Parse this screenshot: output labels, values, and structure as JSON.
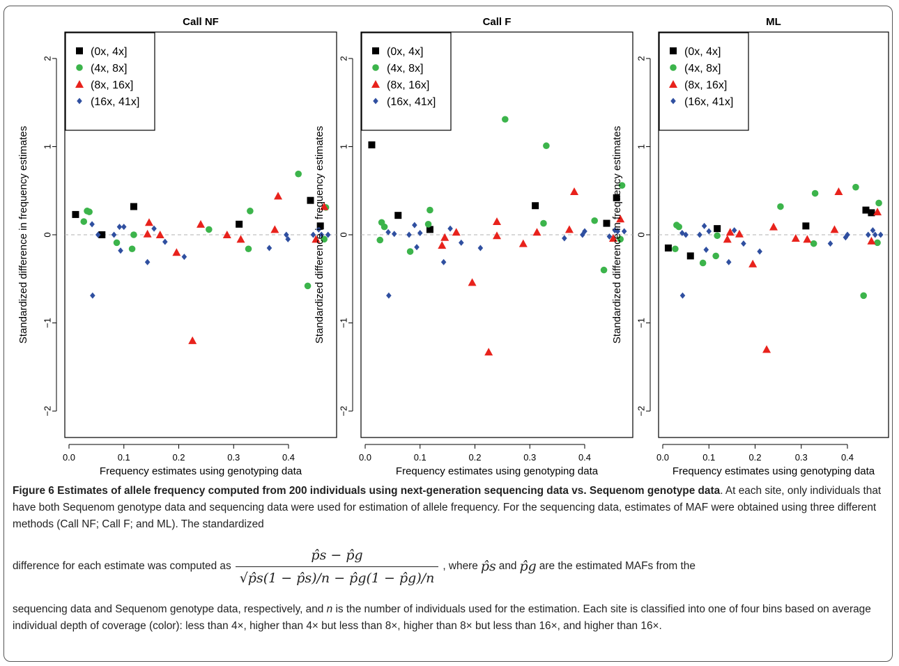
{
  "x_axis_label": "Frequency estimates using genotyping data",
  "y_axis_label": "Standardized difference in frequency estimates",
  "legend": [
    {
      "label": "(0x, 4x]",
      "color": "#000000",
      "marker": "square"
    },
    {
      "label": "(4x, 8x]",
      "color": "#3cb44b",
      "marker": "circle"
    },
    {
      "label": "(8x, 16x]",
      "color": "#e8221c",
      "marker": "triangle"
    },
    {
      "label": "(16x, 41x]",
      "color": "#2f4fa0",
      "marker": "diamond"
    }
  ],
  "chart_data": [
    {
      "type": "scatter",
      "title": "Call NF",
      "xlabel": "Frequency estimates using genotyping data",
      "ylabel": "Standardized difference in frequency estimates",
      "xlim": [
        0,
        0.48
      ],
      "ylim": [
        -2.3,
        2.3
      ],
      "xticks": [
        "0.0",
        "0.1",
        "0.2",
        "0.3",
        "0.4"
      ],
      "yticks": [
        "−2",
        "−1",
        "0",
        "1",
        "2"
      ],
      "reference_line": 0,
      "series": [
        {
          "name": "(0x, 4x]",
          "points": [
            [
              0.012,
              0.23
            ],
            [
              0.06,
              0.0
            ],
            [
              0.118,
              0.32
            ],
            [
              0.31,
              0.12
            ],
            [
              0.44,
              0.39
            ],
            [
              0.458,
              0.1
            ]
          ]
        },
        {
          "name": "(4x, 8x]",
          "points": [
            [
              0.027,
              0.15
            ],
            [
              0.033,
              0.27
            ],
            [
              0.037,
              0.26
            ],
            [
              0.087,
              -0.09
            ],
            [
              0.115,
              -0.16
            ],
            [
              0.118,
              0.0
            ],
            [
              0.255,
              0.06
            ],
            [
              0.327,
              -0.16
            ],
            [
              0.33,
              0.27
            ],
            [
              0.418,
              0.69
            ],
            [
              0.435,
              -0.58
            ],
            [
              0.465,
              -0.05
            ],
            [
              0.468,
              0.31
            ]
          ]
        },
        {
          "name": "(8x, 16x]",
          "points": [
            [
              0.143,
              0.01
            ],
            [
              0.146,
              0.14
            ],
            [
              0.166,
              0.0
            ],
            [
              0.196,
              -0.2
            ],
            [
              0.225,
              -1.2
            ],
            [
              0.24,
              0.12
            ],
            [
              0.288,
              0.0
            ],
            [
              0.313,
              -0.05
            ],
            [
              0.375,
              0.06
            ],
            [
              0.381,
              0.44
            ],
            [
              0.45,
              -0.05
            ],
            [
              0.465,
              0.32
            ]
          ]
        },
        {
          "name": "(16x, 41x]",
          "points": [
            [
              0.042,
              0.12
            ],
            [
              0.043,
              -0.69
            ],
            [
              0.053,
              0.0
            ],
            [
              0.082,
              0.0
            ],
            [
              0.092,
              0.09
            ],
            [
              0.094,
              -0.18
            ],
            [
              0.1,
              0.09
            ],
            [
              0.143,
              -0.31
            ],
            [
              0.155,
              0.07
            ],
            [
              0.175,
              -0.08
            ],
            [
              0.21,
              -0.25
            ],
            [
              0.365,
              -0.15
            ],
            [
              0.396,
              0.0
            ],
            [
              0.399,
              -0.05
            ],
            [
              0.445,
              0.0
            ],
            [
              0.455,
              0.06
            ],
            [
              0.46,
              0.0
            ],
            [
              0.472,
              0.0
            ]
          ]
        }
      ]
    },
    {
      "type": "scatter",
      "title": "Call F",
      "xlabel": "Frequency estimates using genotyping data",
      "ylabel": "Standardized difference in frequency estimates",
      "xlim": [
        0,
        0.48
      ],
      "ylim": [
        -2.3,
        2.3
      ],
      "xticks": [
        "0.0",
        "0.1",
        "0.2",
        "0.3",
        "0.4"
      ],
      "yticks": [
        "−2",
        "−1",
        "0",
        "1",
        "2"
      ],
      "reference_line": 0,
      "series": [
        {
          "name": "(0x, 4x]",
          "points": [
            [
              0.012,
              1.02
            ],
            [
              0.06,
              0.22
            ],
            [
              0.118,
              0.06
            ],
            [
              0.31,
              0.33
            ],
            [
              0.44,
              0.13
            ],
            [
              0.458,
              0.42
            ]
          ]
        },
        {
          "name": "(4x, 8x]",
          "points": [
            [
              0.027,
              -0.06
            ],
            [
              0.03,
              0.14
            ],
            [
              0.035,
              0.09
            ],
            [
              0.082,
              -0.19
            ],
            [
              0.115,
              0.12
            ],
            [
              0.118,
              0.28
            ],
            [
              0.255,
              1.31
            ],
            [
              0.325,
              0.13
            ],
            [
              0.33,
              1.01
            ],
            [
              0.418,
              0.16
            ],
            [
              0.435,
              -0.4
            ],
            [
              0.465,
              -0.05
            ],
            [
              0.468,
              0.56
            ]
          ]
        },
        {
          "name": "(8x, 16x]",
          "points": [
            [
              0.14,
              -0.12
            ],
            [
              0.145,
              -0.03
            ],
            [
              0.166,
              0.03
            ],
            [
              0.195,
              -0.54
            ],
            [
              0.225,
              -1.33
            ],
            [
              0.24,
              0.15
            ],
            [
              0.24,
              -0.01
            ],
            [
              0.288,
              -0.1
            ],
            [
              0.313,
              0.03
            ],
            [
              0.372,
              0.06
            ],
            [
              0.381,
              0.49
            ],
            [
              0.452,
              -0.04
            ],
            [
              0.465,
              0.18
            ]
          ]
        },
        {
          "name": "(16x, 41x]",
          "points": [
            [
              0.042,
              0.03
            ],
            [
              0.043,
              -0.69
            ],
            [
              0.053,
              0.01
            ],
            [
              0.08,
              0.0
            ],
            [
              0.09,
              0.11
            ],
            [
              0.094,
              -0.14
            ],
            [
              0.1,
              0.02
            ],
            [
              0.143,
              -0.31
            ],
            [
              0.155,
              0.07
            ],
            [
              0.175,
              -0.09
            ],
            [
              0.21,
              -0.15
            ],
            [
              0.363,
              -0.04
            ],
            [
              0.396,
              0.0
            ],
            [
              0.4,
              0.04
            ],
            [
              0.445,
              -0.02
            ],
            [
              0.455,
              0.05
            ],
            [
              0.46,
              0.04
            ],
            [
              0.472,
              0.04
            ]
          ]
        }
      ]
    },
    {
      "type": "scatter",
      "title": "ML",
      "xlabel": "Frequency estimates using genotyping data",
      "ylabel": "Standardized difference in frequency estimates",
      "xlim": [
        0,
        0.48
      ],
      "ylim": [
        -2.3,
        2.3
      ],
      "xticks": [
        "0.0",
        "0.1",
        "0.2",
        "0.3",
        "0.4"
      ],
      "yticks": [
        "−2",
        "−1",
        "0",
        "1",
        "2"
      ],
      "reference_line": 0,
      "series": [
        {
          "name": "(0x, 4x]",
          "points": [
            [
              0.012,
              -0.15
            ],
            [
              0.06,
              -0.24
            ],
            [
              0.118,
              0.07
            ],
            [
              0.31,
              0.1
            ],
            [
              0.44,
              0.28
            ],
            [
              0.452,
              0.25
            ]
          ]
        },
        {
          "name": "(4x, 8x]",
          "points": [
            [
              0.027,
              -0.16
            ],
            [
              0.03,
              0.11
            ],
            [
              0.035,
              0.09
            ],
            [
              0.087,
              -0.32
            ],
            [
              0.115,
              -0.24
            ],
            [
              0.118,
              -0.01
            ],
            [
              0.255,
              0.32
            ],
            [
              0.327,
              -0.1
            ],
            [
              0.33,
              0.47
            ],
            [
              0.418,
              0.54
            ],
            [
              0.435,
              -0.69
            ],
            [
              0.465,
              -0.09
            ],
            [
              0.468,
              0.36
            ]
          ]
        },
        {
          "name": "(8x, 16x]",
          "points": [
            [
              0.14,
              -0.05
            ],
            [
              0.146,
              0.03
            ],
            [
              0.166,
              0.01
            ],
            [
              0.195,
              -0.33
            ],
            [
              0.225,
              -1.3
            ],
            [
              0.24,
              0.09
            ],
            [
              0.288,
              -0.04
            ],
            [
              0.313,
              -0.05
            ],
            [
              0.372,
              0.06
            ],
            [
              0.381,
              0.49
            ],
            [
              0.452,
              -0.07
            ],
            [
              0.465,
              0.26
            ]
          ]
        },
        {
          "name": "(16x, 41x]",
          "points": [
            [
              0.042,
              0.02
            ],
            [
              0.043,
              -0.69
            ],
            [
              0.05,
              0.0
            ],
            [
              0.08,
              0.0
            ],
            [
              0.09,
              0.1
            ],
            [
              0.094,
              -0.17
            ],
            [
              0.1,
              0.04
            ],
            [
              0.143,
              -0.31
            ],
            [
              0.155,
              0.05
            ],
            [
              0.175,
              -0.1
            ],
            [
              0.21,
              -0.19
            ],
            [
              0.363,
              -0.1
            ],
            [
              0.396,
              -0.03
            ],
            [
              0.4,
              0.0
            ],
            [
              0.445,
              0.0
            ],
            [
              0.455,
              0.05
            ],
            [
              0.46,
              0.0
            ],
            [
              0.472,
              0.0
            ]
          ]
        }
      ]
    }
  ],
  "caption": {
    "label": "Figure 6",
    "title": "Estimates of allele frequency computed from 200 individuals using next-generation sequencing data vs. Sequenom genotype data",
    "text1": ". At each site, only individuals that have both Sequenom genotype data and sequencing data were used for estimation of allele frequency. For the sequencing data, estimates of MAF were obtained using three different methods (Call NF; Call F; and ML). The standardized",
    "formula_prefix": "difference for each estimate was computed as",
    "formula_numerator": "p̂s − p̂g",
    "formula_denominator": "√p̂s(1 − p̂s)/n − p̂g(1 − p̂g)/n",
    "formula_mid": ", where",
    "var_ps": "p̂s",
    "and": "and",
    "var_pg": "p̂g",
    "formula_suffix": "are the estimated MAFs from the",
    "text2": "sequencing data and Sequenom genotype data, respectively, and ",
    "n_var": "n",
    "text3": " is the number of individuals used for the estimation. Each site is classified into one of four bins based on average individual depth of coverage (color): less than 4×, higher than 4× but less than 8×, higher than 8× but less than 16×, and higher than 16×."
  }
}
